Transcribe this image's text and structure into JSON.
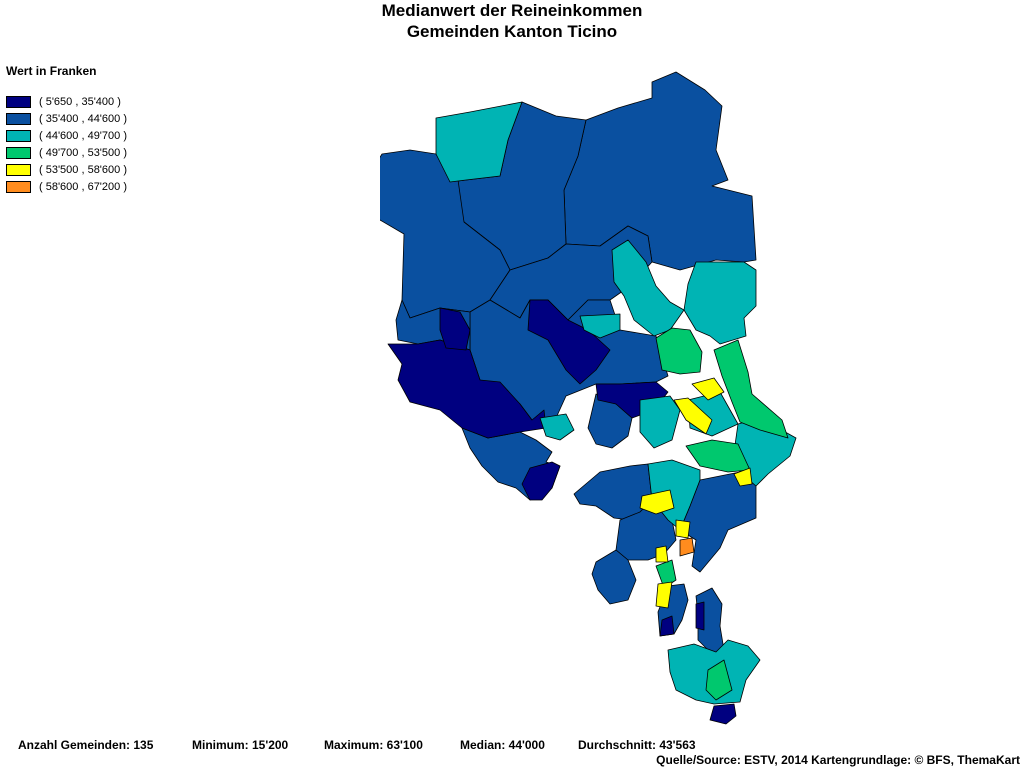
{
  "title": {
    "line1": "Medianwert der Reineinkommen",
    "line2": "Gemeinden Kanton Ticino"
  },
  "legend": {
    "title": "Wert in Franken",
    "items": [
      {
        "label": "( 5'650 , 35'400 )",
        "color": "#000080"
      },
      {
        "label": "( 35'400 , 44'600 )",
        "color": "#0A50A0"
      },
      {
        "label": "( 44'600 , 49'700 )",
        "color": "#00B4B4"
      },
      {
        "label": "( 49'700 , 53'500 )",
        "color": "#00C86E"
      },
      {
        "label": "( 53'500 , 58'600 )",
        "color": "#FFFF00"
      },
      {
        "label": "( 58'600 , 67'200 )",
        "color": "#FF8C1E"
      }
    ]
  },
  "stats": {
    "count": "Anzahl Gemeinden: 135",
    "minimum": "Minimum: 15'200",
    "maximum": "Maximum: 63'100",
    "median": "Median: 44'000",
    "mean": "Durchschnitt: 43'563"
  },
  "source": "Quelle/Source: ESTV, 2014 Kartengrundlage: © BFS, ThemaKart"
}
